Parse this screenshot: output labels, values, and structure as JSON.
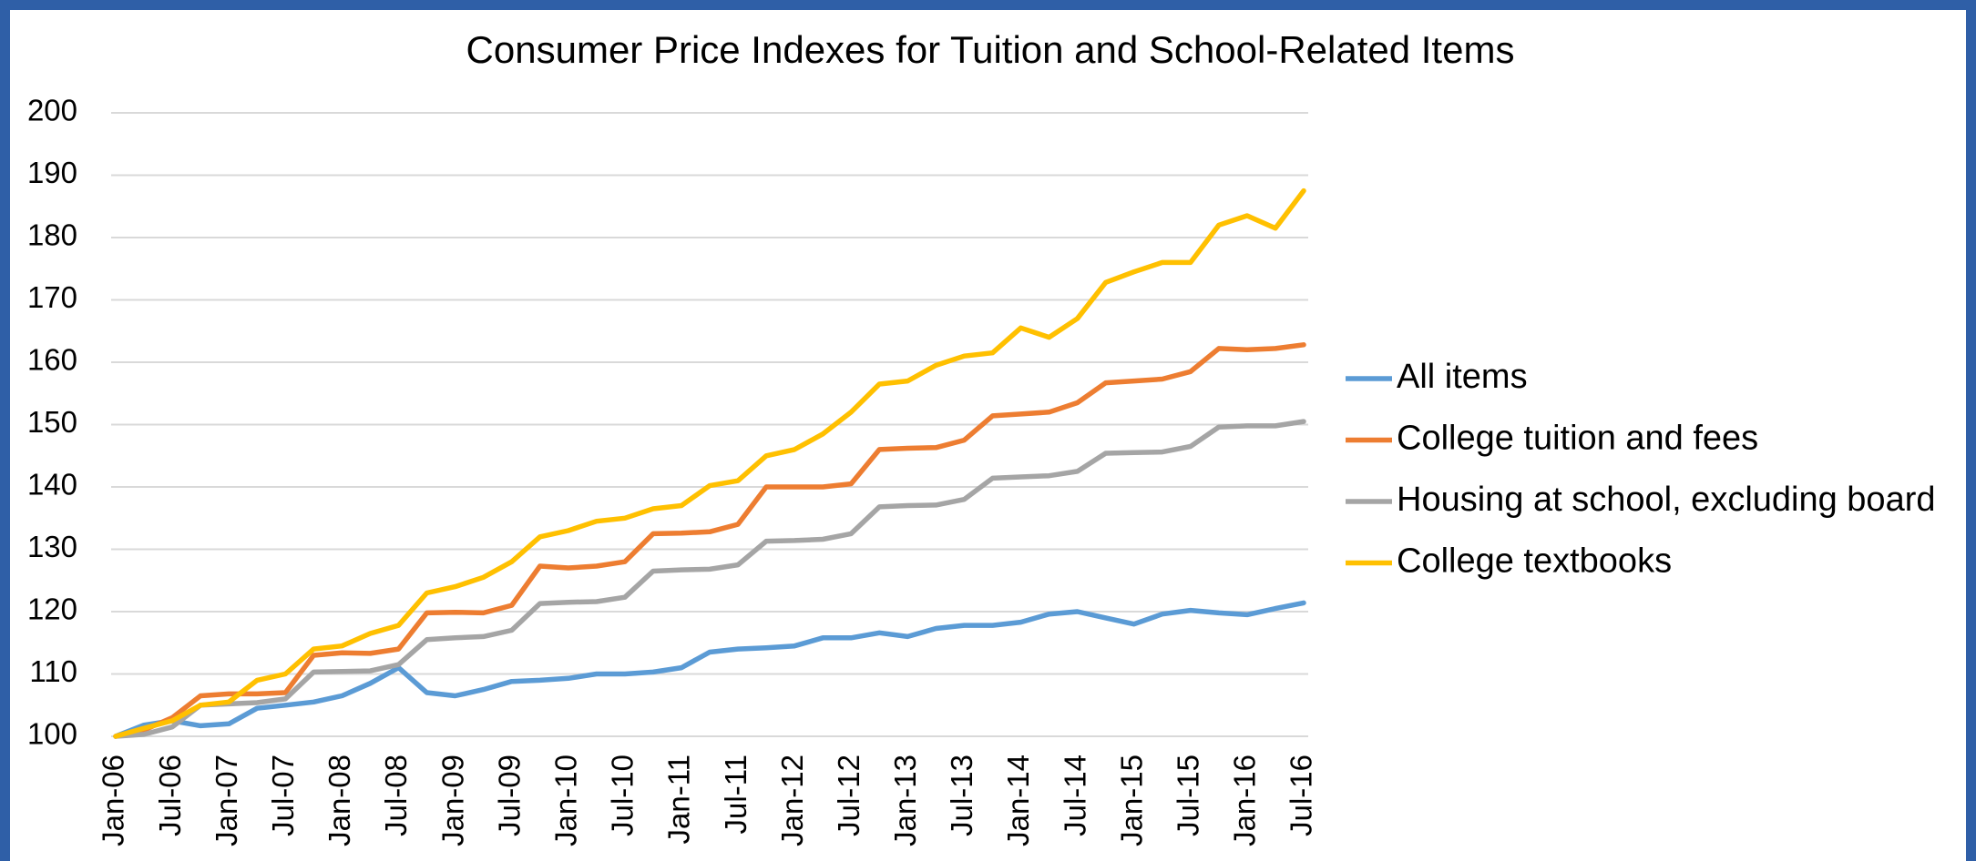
{
  "chart_data": {
    "type": "line",
    "title": "Consumer Price Indexes for Tuition and School-Related Items",
    "categories": [
      "Jan-06",
      null,
      "Jul-06",
      null,
      "Jan-07",
      null,
      "Jul-07",
      null,
      "Jan-08",
      null,
      "Jul-08",
      null,
      "Jan-09",
      null,
      "Jul-09",
      null,
      "Jan-10",
      null,
      "Jul-10",
      null,
      "Jan-11",
      null,
      "Jul-11",
      null,
      "Jan-12",
      null,
      "Jul-12",
      null,
      "Jan-13",
      null,
      "Jul-13",
      null,
      "Jan-14",
      null,
      "Jul-14",
      null,
      "Jan-15",
      null,
      "Jul-15",
      null,
      "Jan-16",
      null,
      "Jul-16"
    ],
    "series": [
      {
        "name": "All items",
        "color": "#5b9bd5",
        "values": [
          100,
          101.8,
          102.5,
          101.7,
          102,
          104.5,
          105,
          105.5,
          106.5,
          108.5,
          111,
          107,
          106.5,
          107.5,
          108.8,
          109,
          109.3,
          110,
          110,
          110.3,
          111,
          113.5,
          114,
          114.2,
          114.5,
          115.8,
          115.8,
          116.6,
          116,
          117.3,
          117.8,
          117.8,
          118.3,
          119.6,
          120,
          119,
          118,
          119.6,
          120.2,
          119.8,
          119.5,
          120.5,
          121.4
        ]
      },
      {
        "name": "College tuition and fees",
        "color": "#ed7d31",
        "values": [
          100,
          101,
          103,
          106.5,
          106.8,
          106.8,
          107,
          113,
          113.4,
          113.3,
          114,
          119.8,
          119.9,
          119.8,
          121,
          127.3,
          127,
          127.3,
          128,
          132.5,
          132.6,
          132.8,
          134,
          140,
          140,
          140,
          140.5,
          146,
          146.2,
          146.3,
          147.5,
          151.4,
          151.7,
          152,
          153.5,
          156.7,
          157,
          157.3,
          158.5,
          162.2,
          162,
          162.2,
          162.8
        ]
      },
      {
        "name": "Housing at school, excluding board",
        "color": "#a5a5a5",
        "values": [
          100,
          100.3,
          101.5,
          105,
          105.2,
          105.4,
          106,
          110.3,
          110.4,
          110.5,
          111.5,
          115.5,
          115.8,
          116,
          117,
          121.3,
          121.5,
          121.6,
          122.3,
          126.5,
          126.7,
          126.8,
          127.5,
          131.3,
          131.4,
          131.6,
          132.5,
          136.8,
          137,
          137.1,
          138,
          141.4,
          141.6,
          141.8,
          142.5,
          145.4,
          145.5,
          145.6,
          146.5,
          149.6,
          149.8,
          149.8,
          150.5
        ]
      },
      {
        "name": "College textbooks",
        "color": "#ffc000",
        "values": [
          100,
          101.3,
          102.5,
          105,
          105.5,
          109,
          110,
          114,
          114.5,
          116.5,
          117.8,
          123,
          124,
          125.5,
          128,
          132,
          133,
          134.5,
          135,
          136.5,
          137,
          140.2,
          141,
          145,
          146,
          148.5,
          152,
          156.5,
          157,
          159.5,
          161,
          161.5,
          165.5,
          164,
          167,
          172.8,
          174.5,
          176,
          176,
          182,
          183.5,
          181.5,
          187.5
        ]
      }
    ],
    "ylim": [
      100,
      200
    ],
    "yticks": [
      100,
      110,
      120,
      130,
      140,
      150,
      160,
      170,
      180,
      190,
      200
    ],
    "grid": true,
    "legend": "right"
  }
}
